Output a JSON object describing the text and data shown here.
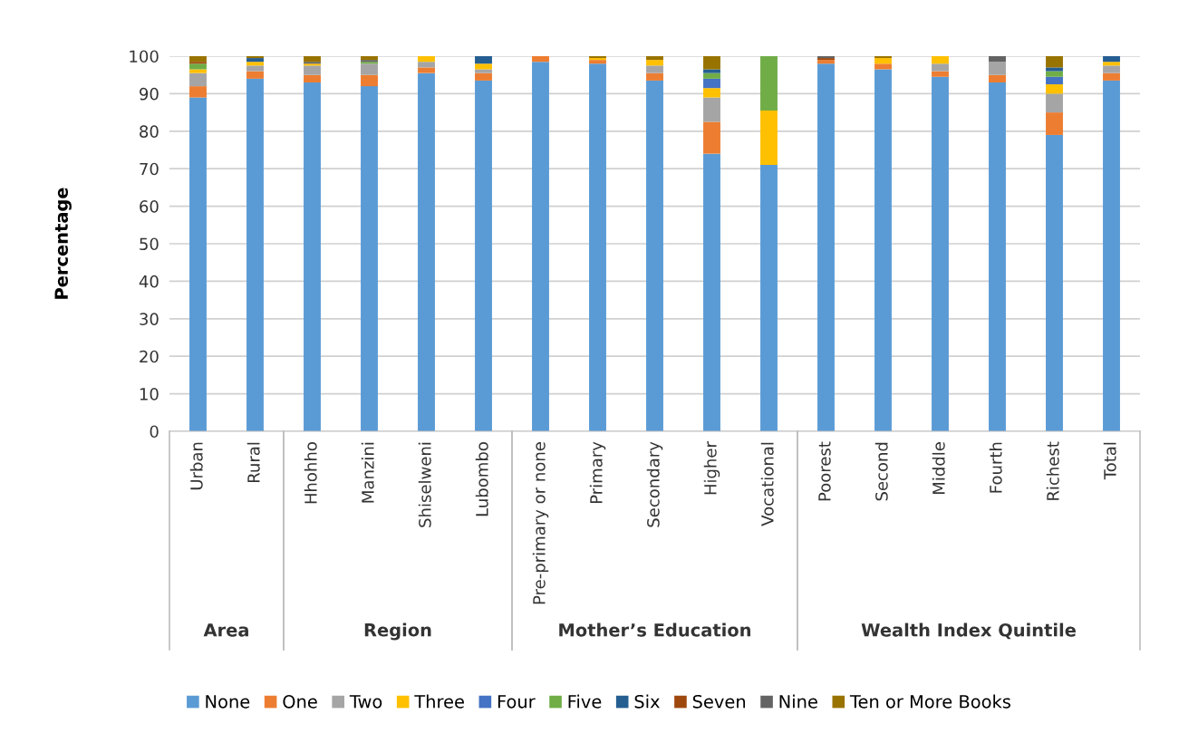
{
  "chart_data": {
    "type": "bar",
    "stacked": true,
    "ylabel": "Percentage",
    "categories": [
      "Urban",
      "Rural",
      "Hhohho",
      "Manzini",
      "Shiselweni",
      "Lubombo",
      "Pre-primary or none",
      "Primary",
      "Secondary",
      "Higher",
      "Vocational",
      "Poorest",
      "Second",
      "Middle",
      "Fourth",
      "Richest",
      "Total"
    ],
    "series": [
      {
        "name": "None",
        "color": "#5b9bd5",
        "values": [
          89,
          94,
          93,
          92,
          95.5,
          93.5,
          98.5,
          98,
          93.5,
          74,
          71,
          98,
          96.5,
          94.5,
          93,
          79,
          93.5
        ]
      },
      {
        "name": "One",
        "color": "#ed7d31",
        "values": [
          3,
          2,
          2,
          3,
          1.5,
          2,
          1.5,
          1,
          2,
          8.5,
          0,
          1,
          1.5,
          1.5,
          2,
          6,
          2
        ]
      },
      {
        "name": "Two",
        "color": "#a5a5a5",
        "values": [
          3.5,
          1.5,
          2.5,
          3,
          1.5,
          1,
          0,
          0,
          2,
          6.5,
          0,
          0,
          0,
          2,
          3.5,
          5,
          2
        ]
      },
      {
        "name": "Three",
        "color": "#ffc000",
        "values": [
          1,
          1,
          0.5,
          0,
          1.5,
          1.5,
          0,
          0.5,
          1.5,
          2.5,
          14.5,
          0,
          1.5,
          2,
          0,
          2.5,
          1
        ]
      },
      {
        "name": "Four",
        "color": "#4472c4",
        "values": [
          0,
          0,
          0,
          0,
          0,
          0,
          0,
          0,
          0,
          2.5,
          0,
          0,
          0,
          0,
          0,
          2,
          0
        ]
      },
      {
        "name": "Five",
        "color": "#70ad47",
        "values": [
          1.5,
          0,
          0,
          0.5,
          0,
          0,
          0,
          0,
          0,
          1.5,
          14.5,
          0,
          0,
          0,
          0,
          1.5,
          0
        ]
      },
      {
        "name": "Six",
        "color": "#255e91",
        "values": [
          0,
          1,
          0,
          0,
          0,
          2,
          0,
          0,
          0,
          1,
          0,
          0,
          0,
          0,
          0,
          1,
          1.5
        ]
      },
      {
        "name": "Seven",
        "color": "#9e480e",
        "values": [
          0.5,
          0,
          0,
          0,
          0,
          0,
          0,
          0,
          0,
          0,
          0,
          0.5,
          0,
          0,
          0,
          0,
          0
        ]
      },
      {
        "name": "Nine",
        "color": "#636363",
        "values": [
          0,
          0,
          0.5,
          0.5,
          0,
          0,
          0,
          0,
          0,
          0,
          0,
          0.5,
          0,
          0,
          1.5,
          0,
          0
        ]
      },
      {
        "name": "Ten or More Books",
        "color": "#997300",
        "values": [
          1.5,
          0.5,
          1.5,
          1,
          0,
          0,
          0,
          0.5,
          1,
          3.5,
          0,
          0,
          0.5,
          0,
          0,
          3,
          0
        ]
      }
    ],
    "ylim": [
      0,
      100
    ],
    "yticks": [
      0,
      10,
      20,
      30,
      40,
      50,
      60,
      70,
      80,
      90,
      100
    ],
    "grid": "y",
    "legend": "bottom",
    "annotations": [
      "Area",
      "Region",
      "Mother’s Education",
      "Wealth Index Quintile"
    ]
  }
}
